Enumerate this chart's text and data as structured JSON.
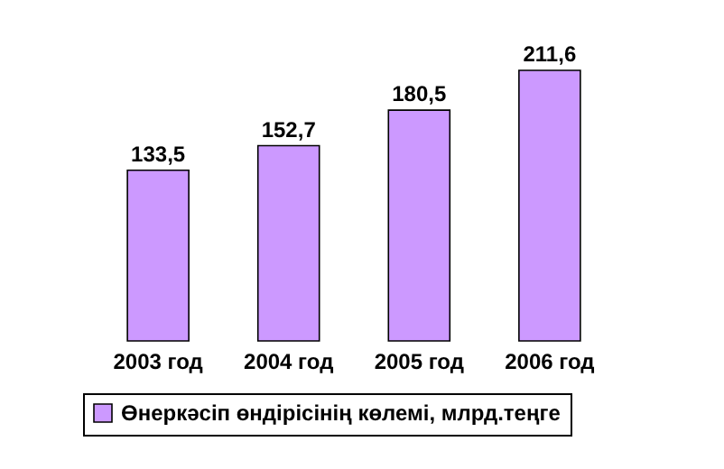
{
  "chart_data": {
    "type": "bar",
    "categories": [
      "2003 год",
      "2004 год",
      "2005 год",
      "2006 год"
    ],
    "series": [
      {
        "name": "Өнеркәсіп өндірісінің көлемі, млрд.теңге",
        "color": "#cc99ff",
        "values": [
          133.5,
          152.7,
          180.5,
          211.6
        ],
        "value_labels": [
          "133,5",
          "152,7",
          "180,5",
          "211,6"
        ]
      }
    ],
    "legend": "bottom"
  }
}
